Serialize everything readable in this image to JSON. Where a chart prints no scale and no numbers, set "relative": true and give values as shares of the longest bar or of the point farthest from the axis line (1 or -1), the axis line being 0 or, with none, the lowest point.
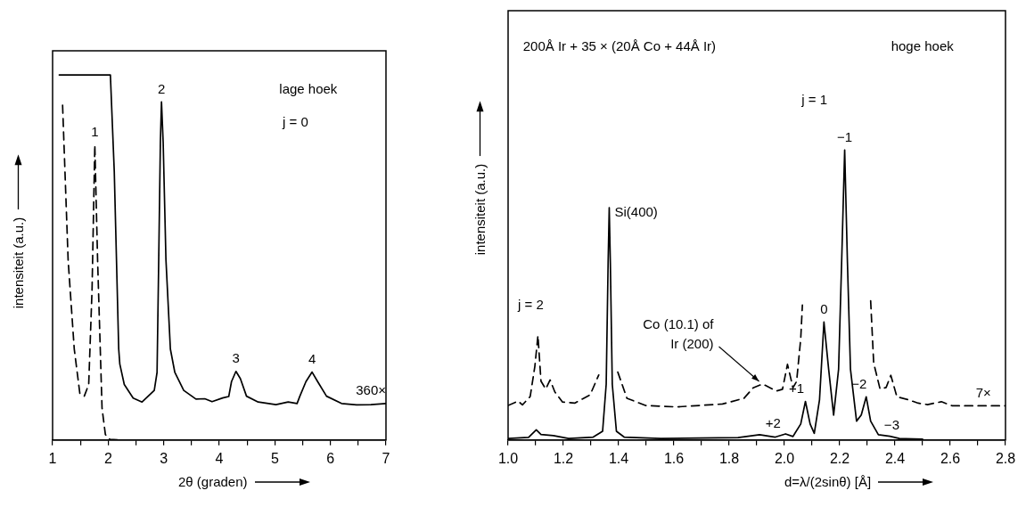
{
  "chart_data": [
    {
      "type": "line",
      "relative": true,
      "xlabel": "2θ  (graden)",
      "ylabel": "intensiteit (a.u.)",
      "xlim": [
        1,
        7
      ],
      "xticks": [
        1,
        {
          "value": 1.5,
          "label": null
        },
        2,
        {
          "value": 2.5,
          "label": null
        },
        3,
        {
          "value": 3.5,
          "label": null
        },
        4,
        {
          "value": 4.5,
          "label": null
        },
        5,
        {
          "value": 5.5,
          "label": null
        },
        6,
        {
          "value": 6.5,
          "label": null
        },
        7
      ],
      "grid": false,
      "legend": false,
      "marker": "none",
      "series": [
        {
          "type": "line",
          "line_style": "solid",
          "color": "#000000",
          "x": [
            1.12,
            2.04,
            2.11,
            2.19,
            2.21,
            2.29,
            2.45,
            2.61,
            2.83,
            2.88,
            2.91,
            2.94,
            2.96,
            2.99,
            3.04,
            3.12,
            3.2,
            3.36,
            3.58,
            3.74,
            3.87,
            4.06,
            4.17,
            4.22,
            4.3,
            4.38,
            4.49,
            4.7,
            5.02,
            5.24,
            5.4,
            5.45,
            5.56,
            5.67,
            5.77,
            5.93,
            6.2,
            6.47,
            6.73,
            7.0
          ],
          "values": [
            1.0,
            1.0,
            0.735,
            0.249,
            0.208,
            0.152,
            0.115,
            0.104,
            0.136,
            0.185,
            0.494,
            0.816,
            0.926,
            0.816,
            0.494,
            0.249,
            0.185,
            0.136,
            0.112,
            0.113,
            0.105,
            0.115,
            0.119,
            0.16,
            0.188,
            0.168,
            0.12,
            0.104,
            0.097,
            0.104,
            0.1,
            0.12,
            0.16,
            0.186,
            0.16,
            0.12,
            0.1,
            0.096,
            0.097,
            0.1
          ]
        },
        {
          "type": "line",
          "line_style": "dashed",
          "color": "#000000",
          "x": [
            1.18,
            1.28,
            1.39,
            1.49,
            1.57,
            1.65,
            1.71,
            1.76,
            1.81,
            1.89,
            1.95,
            2.03,
            2.24
          ],
          "values": [
            0.917,
            0.492,
            0.249,
            0.128,
            0.12,
            0.152,
            0.411,
            0.808,
            0.492,
            0.087,
            0.015,
            0.002,
            0.0
          ]
        }
      ],
      "annotations": [
        "lage hoek",
        "j = 0",
        {
          "text": "1",
          "x": 1.76,
          "y": 0.808
        },
        {
          "text": "2",
          "x": 2.96,
          "y": 0.926
        },
        {
          "text": "3",
          "x": 4.3,
          "y": 0.188
        },
        {
          "text": "4",
          "x": 5.67,
          "y": 0.186
        },
        {
          "text": "360×",
          "x": 6.73,
          "y": 0.097
        }
      ]
    },
    {
      "type": "line",
      "relative": true,
      "title": "200Å Ir + 35 × (20Å Co + 44Å Ir)",
      "xlabel": "d=λ/(2sinθ) [Å]",
      "ylabel": "intensiteit (a.u.)",
      "xlim": [
        1,
        2.8
      ],
      "xticks": [
        {
          "value": 1,
          "label": "1.0"
        },
        {
          "value": 1.1,
          "label": null
        },
        1.2,
        {
          "value": 1.3,
          "label": null
        },
        1.4,
        {
          "value": 1.5,
          "label": null
        },
        1.6,
        {
          "value": 1.7,
          "label": null
        },
        1.8,
        {
          "value": 1.9,
          "label": null
        },
        {
          "value": 2,
          "label": "2.0"
        },
        {
          "value": 2.1,
          "label": null
        },
        2.2,
        {
          "value": 2.3,
          "label": null
        },
        2.4,
        {
          "value": 2.5,
          "label": null
        },
        2.6,
        {
          "value": 2.7,
          "label": null
        },
        2.8
      ],
      "grid": false,
      "legend": false,
      "marker": "none",
      "series": [
        {
          "type": "line",
          "line_style": "solid",
          "color": "#000000",
          "x": [
            1.0,
            1.074,
            1.102,
            1.119,
            1.164,
            1.219,
            1.308,
            1.342,
            1.355,
            1.362,
            1.366,
            1.37,
            1.377,
            1.392,
            1.42,
            1.553,
            1.832,
            1.91,
            1.967,
            2.004,
            2.031,
            2.038,
            2.059,
            2.076,
            2.093,
            2.108,
            2.127,
            2.143,
            2.16,
            2.178,
            2.196,
            2.207,
            2.218,
            2.228,
            2.239,
            2.261,
            2.278,
            2.296,
            2.312,
            2.34,
            2.382,
            2.416,
            2.5
          ],
          "values": [
            0.005,
            0.009,
            0.035,
            0.019,
            0.015,
            0.005,
            0.01,
            0.03,
            0.192,
            0.612,
            0.801,
            0.612,
            0.192,
            0.03,
            0.01,
            0.005,
            0.008,
            0.018,
            0.01,
            0.021,
            0.012,
            0.023,
            0.055,
            0.133,
            0.055,
            0.023,
            0.139,
            0.407,
            0.244,
            0.086,
            0.244,
            0.612,
            1.0,
            0.612,
            0.244,
            0.065,
            0.086,
            0.149,
            0.065,
            0.018,
            0.013,
            0.005,
            0.003
          ]
        },
        {
          "type": "line",
          "line_style": "dashed",
          "color": "#000000",
          "x": [
            1.0,
            1.036,
            1.052,
            1.08,
            1.097,
            1.108,
            1.119,
            1.136,
            1.152,
            1.169,
            1.197,
            1.241,
            1.297,
            1.328,
            1.36,
            1.397,
            1.43,
            1.497,
            1.609,
            1.776,
            1.854,
            1.887,
            1.921,
            1.971,
            1.993,
            2.011,
            2.031,
            2.044,
            2.059,
            2.065,
            2.2,
            2.312,
            2.323,
            2.346,
            2.368,
            2.385,
            2.407,
            2.451,
            2.484,
            2.518,
            2.568,
            2.607,
            2.8
          ],
          "values": [
            0.119,
            0.134,
            0.121,
            0.15,
            0.255,
            0.36,
            0.203,
            0.176,
            0.207,
            0.166,
            0.131,
            0.127,
            0.156,
            0.224,
            null,
            0.234,
            0.144,
            0.119,
            0.114,
            0.124,
            0.144,
            0.18,
            0.193,
            0.169,
            0.175,
            0.261,
            0.18,
            0.202,
            0.349,
            0.465,
            null,
            0.48,
            0.265,
            0.176,
            0.181,
            0.223,
            0.149,
            0.138,
            0.127,
            0.122,
            0.132,
            0.118,
            0.118
          ]
        }
      ],
      "annotations": [
        "hoge hoek",
        "j = 1",
        {
          "text": "j = 2",
          "x": 1.108,
          "y": 0.36
        },
        {
          "text": "Si(400)",
          "x": 1.366,
          "y": 0.801
        },
        {
          "text": "Co (10.1) of Ir (200)",
          "x": 1.921,
          "y": 0.193
        },
        {
          "text": "+2",
          "x": 2.004,
          "y": 0.021
        },
        {
          "text": "+1",
          "x": 2.076,
          "y": 0.133
        },
        {
          "text": "0",
          "x": 2.143,
          "y": 0.407
        },
        {
          "text": "−1",
          "x": 2.218,
          "y": 1.0
        },
        {
          "text": "−2",
          "x": 2.296,
          "y": 0.149
        },
        {
          "text": "−3",
          "x": 2.382,
          "y": 0.013
        },
        {
          "text": "7×",
          "x": 2.72,
          "y": 0.118
        }
      ]
    }
  ]
}
